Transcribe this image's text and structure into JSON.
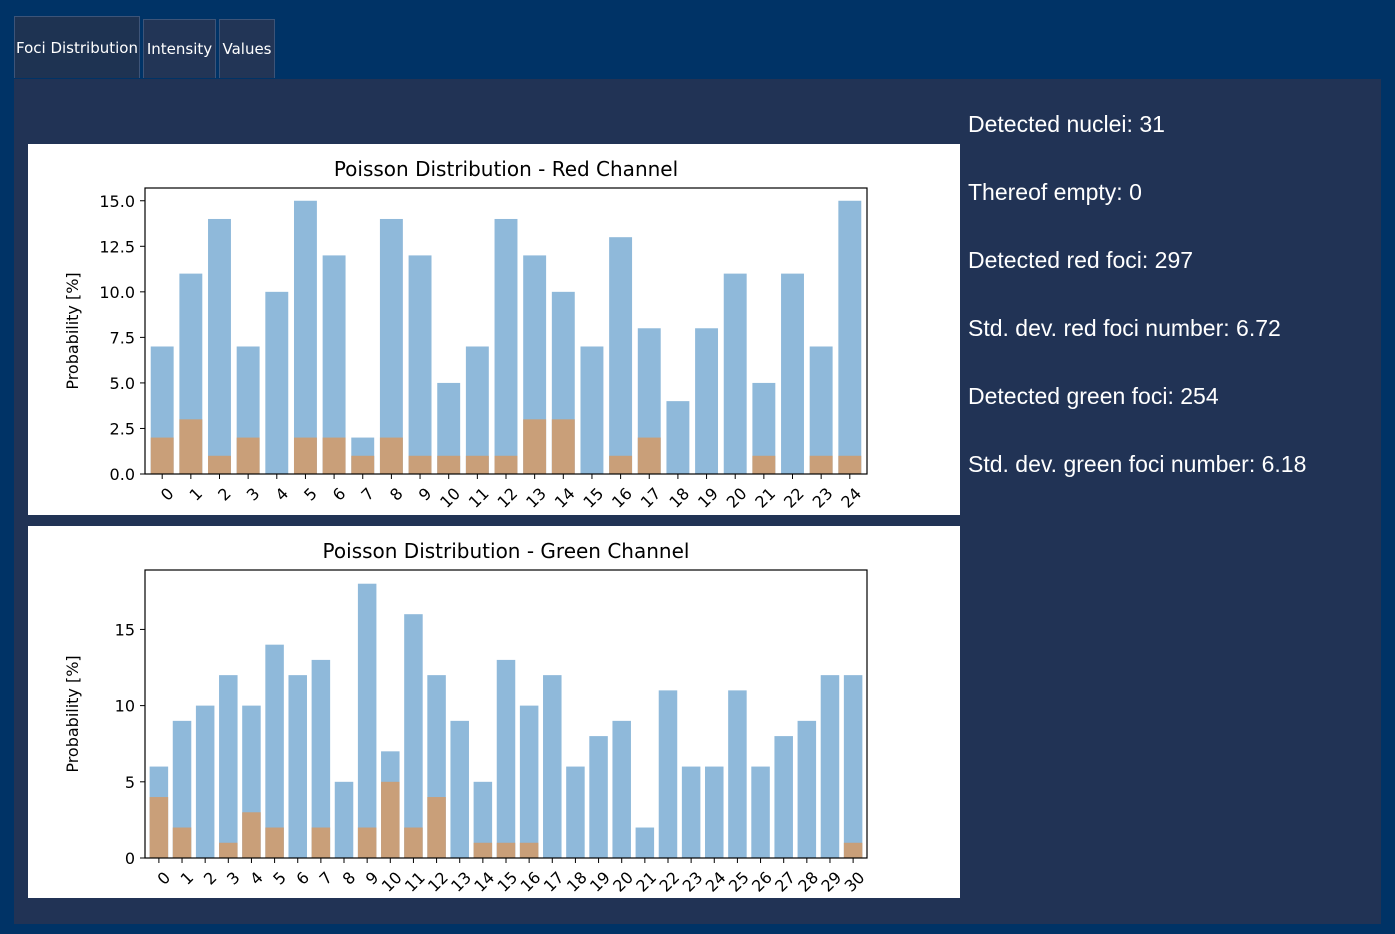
{
  "tabs": [
    {
      "label": "Foci Distribution",
      "active": true
    },
    {
      "label": "Intensity",
      "active": false
    },
    {
      "label": "Values",
      "active": false
    }
  ],
  "stats": [
    {
      "label": "Detected nuclei: 31"
    },
    {
      "label": "Thereof empty: 0"
    },
    {
      "label": "Detected red foci: 297"
    },
    {
      "label": "Std. dev. red foci number: 6.72"
    },
    {
      "label": "Detected green foci: 254"
    },
    {
      "label": "Std. dev. green foci number: 6.18"
    }
  ],
  "colors": {
    "background": "#003366",
    "panel": "#213355",
    "bar_primary": "#8fb9da",
    "bar_secondary": "#c99f79"
  },
  "chart_data": [
    {
      "type": "bar",
      "title": "Poisson Distribution - Red Channel",
      "xlabel": "",
      "ylabel": "Probability [%]",
      "categories": [
        "0",
        "1",
        "2",
        "3",
        "4",
        "5",
        "6",
        "7",
        "8",
        "9",
        "10",
        "11",
        "12",
        "13",
        "14",
        "15",
        "16",
        "17",
        "18",
        "19",
        "20",
        "21",
        "22",
        "23",
        "24"
      ],
      "series": [
        {
          "values": [
            7,
            11,
            14,
            7,
            10,
            15,
            12,
            2,
            14,
            12,
            5,
            7,
            14,
            12,
            10,
            7,
            13,
            8,
            4,
            8,
            11,
            5,
            11,
            7,
            15
          ]
        },
        {
          "values": [
            2,
            3,
            1,
            2,
            0,
            2,
            2,
            1,
            2,
            1,
            1,
            1,
            1,
            3,
            3,
            0,
            1,
            2,
            0,
            0,
            0,
            1,
            0,
            1,
            1
          ]
        }
      ],
      "yticks": [
        "0.0",
        "2.5",
        "5.0",
        "7.5",
        "10.0",
        "12.5",
        "15.0"
      ],
      "ylim": [
        0,
        15.7
      ],
      "grid": false,
      "overlay": true
    },
    {
      "type": "bar",
      "title": "Poisson Distribution - Green Channel",
      "xlabel": "",
      "ylabel": "Probability [%]",
      "categories": [
        "0",
        "1",
        "2",
        "3",
        "4",
        "5",
        "6",
        "7",
        "8",
        "9",
        "10",
        "11",
        "12",
        "13",
        "14",
        "15",
        "16",
        "17",
        "18",
        "19",
        "20",
        "21",
        "22",
        "23",
        "24",
        "25",
        "26",
        "27",
        "28",
        "29",
        "30"
      ],
      "series": [
        {
          "values": [
            6,
            9,
            10,
            12,
            10,
            14,
            12,
            13,
            5,
            18,
            7,
            16,
            12,
            9,
            5,
            13,
            10,
            12,
            6,
            8,
            9,
            2,
            11,
            6,
            6,
            11,
            6,
            8,
            9,
            12,
            12
          ]
        },
        {
          "values": [
            4,
            2,
            0,
            1,
            3,
            2,
            0,
            2,
            0,
            2,
            5,
            2,
            4,
            0,
            1,
            1,
            1,
            0,
            0,
            0,
            0,
            0,
            0,
            0,
            0,
            0,
            0,
            0,
            0,
            0,
            1
          ]
        }
      ],
      "yticks": [
        "0",
        "5",
        "10",
        "15"
      ],
      "ylim": [
        0,
        18.9
      ],
      "grid": false,
      "overlay": true
    }
  ]
}
